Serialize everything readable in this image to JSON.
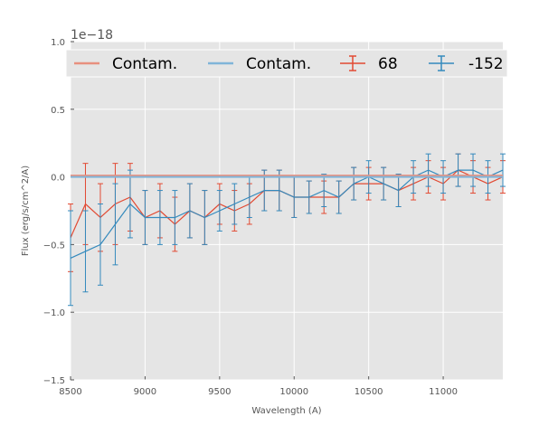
{
  "chart_data": {
    "type": "line",
    "title": "",
    "xlabel": "Wavelength (A)",
    "ylabel": "Flux (erg/s/cm^2/A)",
    "y_offset_label": "1e−18",
    "xlim": [
      8500,
      11400
    ],
    "ylim": [
      -1.5,
      1.0
    ],
    "x_ticks": [
      8500,
      9000,
      9500,
      10000,
      10500,
      11000
    ],
    "x_tick_labels": [
      "8500",
      "9000",
      "9500",
      "10000",
      "10500",
      "11000"
    ],
    "y_ticks": [
      -1.5,
      -1.0,
      -0.5,
      0.0,
      0.5,
      1.0
    ],
    "y_tick_labels": [
      "−1.5",
      "−1.0",
      "−0.5",
      "0.0",
      "0.5",
      "1.0"
    ],
    "grid": true,
    "legend_position": "top",
    "colors": {
      "red": "#E24A33",
      "blue": "#348ABD",
      "red_light": "#E8907F",
      "blue_light": "#80B5D9",
      "background": "#E5E5E5"
    },
    "legend": [
      {
        "label": "Contam.",
        "kind": "line",
        "color": "#E8907F"
      },
      {
        "label": "Contam.",
        "kind": "line",
        "color": "#80B5D9"
      },
      {
        "label": "68",
        "kind": "errorbar",
        "color": "#E24A33"
      },
      {
        "label": "-152",
        "kind": "errorbar",
        "color": "#348ABD"
      }
    ],
    "series": [
      {
        "name": "68",
        "color": "#E24A33",
        "x": [
          8500,
          8600,
          8700,
          8800,
          8900,
          9000,
          9100,
          9200,
          9300,
          9400,
          9500,
          9600,
          9700,
          9800,
          9900,
          10000,
          10100,
          10200,
          10300,
          10400,
          10500,
          10600,
          10700,
          10800,
          10900,
          11000,
          11100,
          11200,
          11300,
          11400
        ],
        "y": [
          -0.45,
          -0.2,
          -0.3,
          -0.2,
          -0.15,
          -0.3,
          -0.25,
          -0.35,
          -0.25,
          -0.3,
          -0.2,
          -0.25,
          -0.2,
          -0.1,
          -0.1,
          -0.15,
          -0.15,
          -0.15,
          -0.15,
          -0.05,
          -0.05,
          -0.05,
          -0.1,
          -0.05,
          0.0,
          -0.05,
          0.05,
          0.0,
          -0.05,
          0.0
        ],
        "err": [
          0.25,
          0.3,
          0.25,
          0.3,
          0.25,
          0.2,
          0.2,
          0.2,
          0.2,
          0.2,
          0.15,
          0.15,
          0.15,
          0.15,
          0.15,
          0.15,
          0.12,
          0.12,
          0.12,
          0.12,
          0.12,
          0.12,
          0.12,
          0.12,
          0.12,
          0.12,
          0.12,
          0.12,
          0.12,
          0.12
        ]
      },
      {
        "name": "-152",
        "color": "#348ABD",
        "x": [
          8500,
          8600,
          8700,
          8800,
          8900,
          9000,
          9100,
          9200,
          9300,
          9400,
          9500,
          9600,
          9700,
          9800,
          9900,
          10000,
          10100,
          10200,
          10300,
          10400,
          10500,
          10600,
          10700,
          10800,
          10900,
          11000,
          11100,
          11200,
          11300,
          11400
        ],
        "y": [
          -0.6,
          -0.55,
          -0.5,
          -0.35,
          -0.2,
          -0.3,
          -0.3,
          -0.3,
          -0.25,
          -0.3,
          -0.25,
          -0.2,
          -0.15,
          -0.1,
          -0.1,
          -0.15,
          -0.15,
          -0.1,
          -0.15,
          -0.05,
          0.0,
          -0.05,
          -0.1,
          0.0,
          0.05,
          0.0,
          0.05,
          0.05,
          0.0,
          0.05
        ],
        "err": [
          0.35,
          0.3,
          0.3,
          0.3,
          0.25,
          0.2,
          0.2,
          0.2,
          0.2,
          0.2,
          0.15,
          0.15,
          0.15,
          0.15,
          0.15,
          0.15,
          0.12,
          0.12,
          0.12,
          0.12,
          0.12,
          0.12,
          0.12,
          0.12,
          0.12,
          0.12,
          0.12,
          0.12,
          0.12,
          0.12
        ]
      },
      {
        "name": "Contam.",
        "color": "#E8907F",
        "x": [
          8500,
          11400
        ],
        "y": [
          0.01,
          0.01
        ]
      },
      {
        "name": "Contam.",
        "color": "#80B5D9",
        "x": [
          8500,
          11400
        ],
        "y": [
          0.0,
          0.0
        ]
      }
    ]
  }
}
